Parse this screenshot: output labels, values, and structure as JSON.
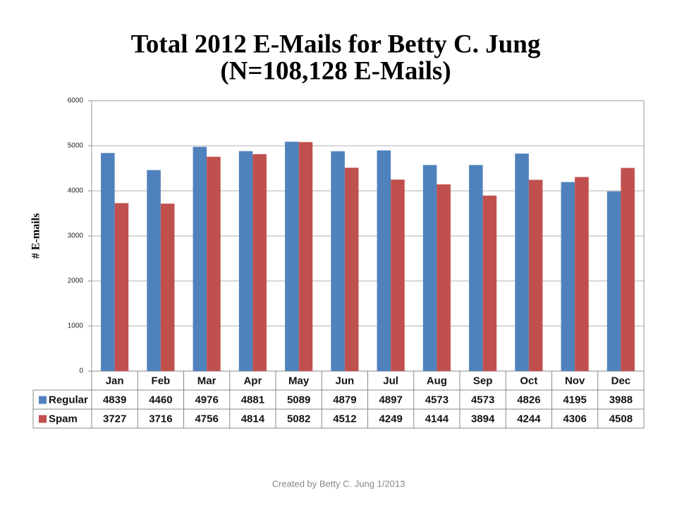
{
  "chart_data": {
    "type": "bar",
    "title": "Total 2012 E-Mails for Betty C. Jung",
    "subtitle": "(N=108,128 E-Mails)",
    "y_label": "# E-mails",
    "caption": "Created by Betty C. Jung 1/2013",
    "categories": [
      "Jan",
      "Feb",
      "Mar",
      "Apr",
      "May",
      "Jun",
      "Jul",
      "Aug",
      "Sep",
      "Oct",
      "Nov",
      "Dec"
    ],
    "series": [
      {
        "name": "Regular",
        "color": "#4f81bd",
        "values": [
          4839,
          4460,
          4976,
          4881,
          5089,
          4879,
          4897,
          4573,
          4573,
          4826,
          4195,
          3988
        ]
      },
      {
        "name": "Spam",
        "color": "#c0504d",
        "values": [
          3727,
          3716,
          4756,
          4814,
          5082,
          4512,
          4249,
          4144,
          3894,
          4244,
          4306,
          4508
        ]
      }
    ],
    "ylim": [
      0,
      6000
    ],
    "yticks": [
      0,
      1000,
      2000,
      3000,
      4000,
      5000,
      6000
    ],
    "grid": true
  }
}
